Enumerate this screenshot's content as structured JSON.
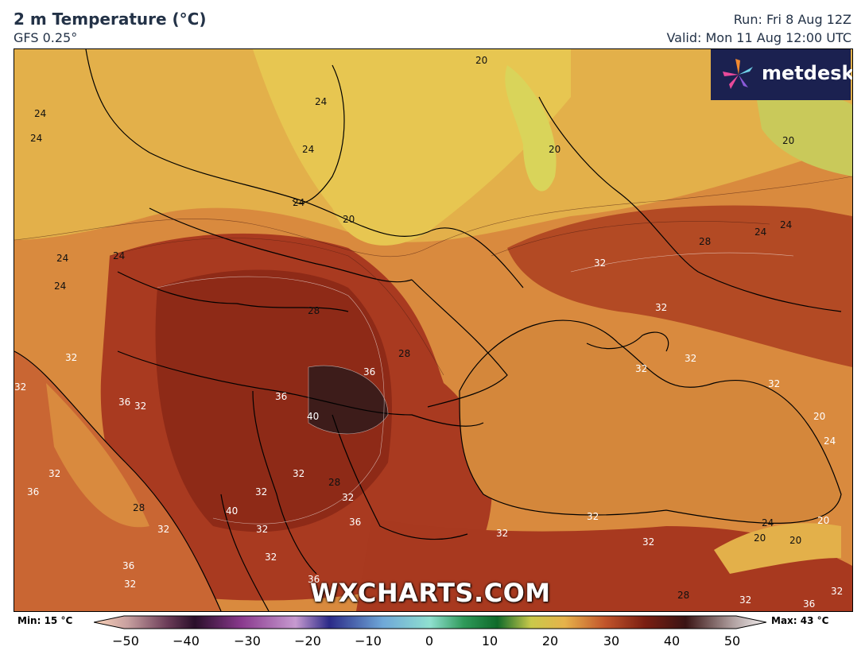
{
  "header": {
    "title": "2 m Temperature (°C)",
    "model": "GFS 0.25°",
    "run": "Run: Fri 8 Aug 12Z",
    "valid": "Valid: Mon 11 Aug 12:00 UTC"
  },
  "logo": {
    "text": "metdesk",
    "icon": "pinwheel-logo-icon",
    "bg_color": "#1b2150"
  },
  "watermark": "WXCHARTS.COM",
  "colorbar": {
    "min_label": "Min: 15 °C",
    "max_label": "Max: 43 °C",
    "ticks": [
      "−50",
      "−40",
      "−30",
      "−20",
      "−10",
      "0",
      "10",
      "20",
      "30",
      "40",
      "50"
    ]
  },
  "map": {
    "contour_labels": {
      "l1": "20",
      "l2": "24",
      "l3": "24",
      "l4": "24",
      "l5": "24",
      "l6": "20",
      "l7": "20",
      "l8": "24",
      "l9": "20",
      "l10": "24",
      "l11": "24",
      "l12": "24",
      "l13": "24",
      "l14": "28",
      "l15": "28",
      "l16": "32",
      "l17": "28",
      "l18": "24",
      "l19": "32",
      "l20": "32",
      "l21": "32",
      "l22": "36",
      "l23": "36",
      "l24": "36",
      "l25": "40",
      "l26": "32",
      "l27": "32",
      "l28": "32",
      "l29": "32",
      "l30": "20",
      "l31": "24",
      "l32": "32",
      "l33": "36",
      "l34": "32",
      "l35": "28",
      "l36": "32",
      "l37": "32",
      "l38": "28",
      "l39": "40",
      "l40": "36",
      "l41": "32",
      "l42": "32",
      "l43": "32",
      "l44": "36",
      "l45": "32",
      "l46": "36",
      "l47": "32",
      "l48": "32",
      "l49": "32",
      "l50": "24",
      "l51": "20",
      "l52": "20",
      "l53": "20",
      "l54": "28",
      "l55": "32",
      "l56": "36",
      "l57": "32"
    },
    "colors": {
      "cool": "#d8c84a",
      "mild": "#e6b24b",
      "warm": "#d98a3e",
      "hot": "#c2552b",
      "very_hot": "#8e2a17",
      "extreme": "#3d1c1a",
      "sea": "#d4873b"
    }
  }
}
